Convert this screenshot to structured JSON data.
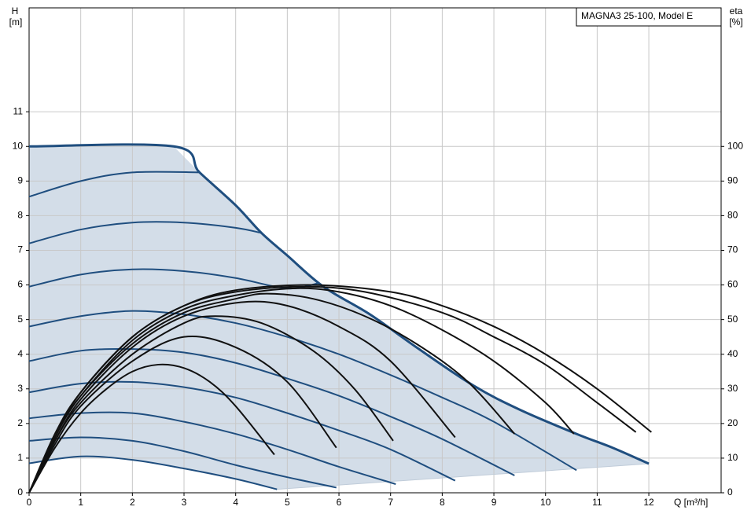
{
  "chart_data": {
    "type": "line",
    "title": "MAGNA3 25-100, Model E",
    "ylabel": [
      "H",
      "[m]"
    ],
    "y2label": [
      "eta",
      "[%]"
    ],
    "xlabel": "Q [m³/h]",
    "xlim": [
      0,
      13.4
    ],
    "ylim": [
      0,
      14
    ],
    "y2lim": [
      0,
      140
    ],
    "xticks": [
      0,
      1,
      2,
      3,
      4,
      5,
      6,
      7,
      8,
      9,
      10,
      11,
      12
    ],
    "yticks": [
      0,
      1,
      2,
      3,
      4,
      5,
      6,
      7,
      8,
      9,
      10,
      11
    ],
    "y2ticks": [
      0,
      10,
      20,
      30,
      40,
      50,
      60,
      70,
      80,
      90,
      100
    ],
    "grid": true,
    "area_color": "#d3dde8",
    "series": [
      {
        "color": "#1f4e7f",
        "x": [
          0,
          2.8,
          3.3,
          4,
          4.5,
          5,
          5.7,
          6.6,
          7.5,
          8.6,
          9.5,
          10.6,
          11.3,
          12
        ],
        "values": [
          10,
          10,
          9.25,
          8.3,
          7.5,
          6.85,
          5.95,
          5.15,
          4.2,
          3.1,
          2.4,
          1.7,
          1.3,
          0.84
        ]
      },
      {
        "color": "#1f4e7f",
        "x": [
          0,
          1,
          2,
          3,
          4,
          4.8
        ],
        "values": [
          0.85,
          1.05,
          0.95,
          0.7,
          0.4,
          0.1
        ]
      },
      {
        "color": "#1f4e7f",
        "x": [
          0,
          1,
          2,
          3,
          4,
          5,
          5.95
        ],
        "values": [
          1.5,
          1.6,
          1.5,
          1.2,
          0.8,
          0.45,
          0.15
        ]
      },
      {
        "color": "#1f4e7f",
        "x": [
          0,
          1,
          2,
          3,
          4,
          5,
          6,
          7.1
        ],
        "values": [
          2.15,
          2.3,
          2.3,
          2.05,
          1.7,
          1.25,
          0.75,
          0.25
        ]
      },
      {
        "color": "#1f4e7f",
        "x": [
          0,
          1,
          2,
          3,
          4,
          5,
          6,
          7,
          8.25
        ],
        "values": [
          2.9,
          3.15,
          3.2,
          3.05,
          2.75,
          2.3,
          1.8,
          1.25,
          0.35
        ]
      },
      {
        "color": "#1f4e7f",
        "x": [
          0,
          1,
          2,
          3,
          4,
          5,
          6,
          7,
          8,
          9.4
        ],
        "values": [
          3.8,
          4.1,
          4.15,
          4.05,
          3.75,
          3.3,
          2.8,
          2.2,
          1.55,
          0.5
        ]
      },
      {
        "color": "#1f4e7f",
        "x": [
          0,
          1,
          2,
          3,
          4,
          5,
          6,
          7,
          8,
          9,
          10.6
        ],
        "values": [
          4.8,
          5.1,
          5.25,
          5.15,
          4.9,
          4.5,
          4.0,
          3.4,
          2.75,
          2.05,
          0.65
        ]
      },
      {
        "color": "#1f4e7f",
        "x": [
          0,
          1,
          2,
          3,
          4,
          5,
          5.6
        ],
        "values": [
          5.95,
          6.3,
          6.45,
          6.4,
          6.2,
          5.9,
          6.05
        ]
      },
      {
        "color": "#1f4e7f",
        "x": [
          0,
          1,
          2,
          3,
          4,
          4.5
        ],
        "values": [
          7.2,
          7.6,
          7.8,
          7.8,
          7.65,
          7.5
        ]
      },
      {
        "color": "#1f4e7f",
        "x": [
          0,
          1,
          2,
          3.3
        ],
        "values": [
          8.55,
          9.0,
          9.25,
          9.25
        ]
      },
      {
        "color": "#111111",
        "axis": "y2",
        "x": [
          0,
          0.5,
          1,
          1.5,
          2,
          2.5,
          3,
          3.5,
          4,
          4.75
        ],
        "values": [
          0,
          13,
          23,
          30,
          35,
          37,
          36,
          32,
          25,
          11
        ]
      },
      {
        "color": "#111111",
        "axis": "y2",
        "x": [
          0,
          0.5,
          1,
          2,
          3,
          4,
          5,
          5.95
        ],
        "values": [
          0,
          14,
          25,
          38,
          45,
          42,
          32,
          13
        ]
      },
      {
        "color": "#111111",
        "axis": "y2",
        "x": [
          0,
          0.5,
          1,
          2,
          3,
          3.6,
          4.5,
          5.5,
          6.3,
          7.05
        ],
        "values": [
          0,
          15,
          26,
          40,
          49,
          51,
          49,
          41,
          30,
          15
        ]
      },
      {
        "color": "#111111",
        "axis": "y2",
        "x": [
          0,
          0.5,
          1,
          2,
          3,
          4.1,
          5,
          6,
          7,
          8.25
        ],
        "values": [
          0,
          15,
          27,
          42,
          51,
          55,
          54,
          48,
          38,
          16
        ]
      },
      {
        "color": "#111111",
        "axis": "y2",
        "x": [
          0,
          0.5,
          1,
          2,
          3,
          4,
          4.6,
          5.5,
          6.5,
          7.5,
          8.5,
          9.4
        ],
        "values": [
          0,
          16,
          28,
          43,
          52,
          56,
          57.5,
          56,
          51,
          43,
          32,
          17
        ]
      },
      {
        "color": "#111111",
        "axis": "y2",
        "x": [
          0,
          0.5,
          1,
          2,
          3,
          4,
          5.1,
          6,
          7,
          8,
          9,
          10,
          10.55
        ],
        "values": [
          0,
          16,
          28,
          44,
          53,
          57,
          59,
          58,
          54,
          47,
          38,
          26,
          17
        ]
      },
      {
        "color": "#111111",
        "axis": "y2",
        "x": [
          0,
          0.5,
          1,
          2,
          3,
          4,
          5.3,
          6.5,
          8,
          9,
          10,
          11,
          11.75
        ],
        "values": [
          0,
          16,
          29,
          45,
          54,
          58,
          59.5,
          58,
          52,
          45,
          37,
          26,
          17.5
        ]
      },
      {
        "color": "#111111",
        "axis": "y2",
        "x": [
          0,
          0.5,
          1,
          2,
          3,
          4,
          5.5,
          7,
          8,
          9,
          10,
          11,
          12.05
        ],
        "values": [
          0,
          17,
          29,
          45,
          54,
          58.5,
          60,
          58,
          54,
          48,
          40,
          30,
          17.5
        ]
      }
    ],
    "lower_bound": {
      "color": "#c0ccd9",
      "x": [
        4.8,
        12
      ],
      "values": [
        0.1,
        0.84
      ]
    }
  }
}
